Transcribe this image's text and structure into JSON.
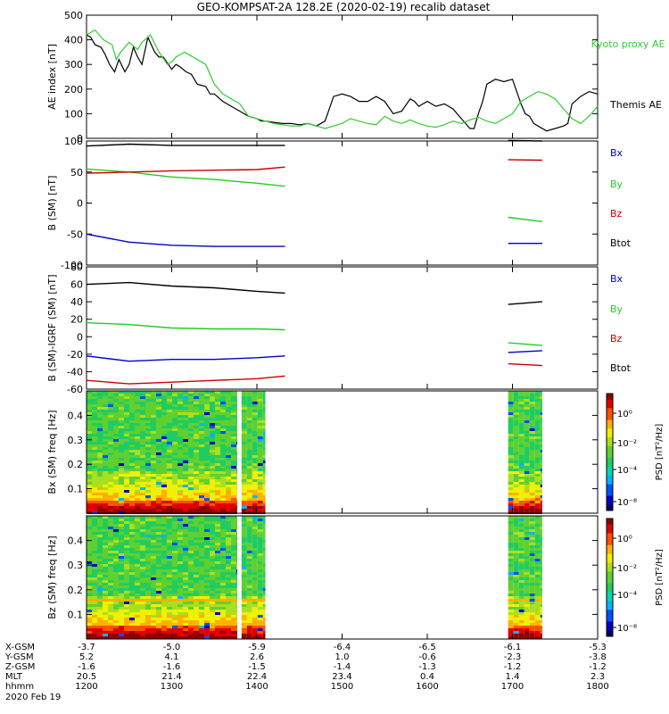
{
  "title": "GEO-KOMPSAT-2A 128.2E (2020-02-19) recalib dataset",
  "colors": {
    "black": "#000000",
    "blue": "#0000cc",
    "green": "#22cc22",
    "red": "#cc0000",
    "kyoto": "#33cc33"
  },
  "chart_data": [
    {
      "type": "line",
      "id": "ae",
      "ylabel": "AE index [nT]",
      "ylim": [
        0,
        500
      ],
      "yticks": [
        0,
        100,
        200,
        300,
        400,
        500
      ],
      "x_range_hours": [
        12,
        18
      ],
      "legend": [
        {
          "label": "Kyoto proxy AE",
          "color": "#33cc33"
        },
        {
          "label": "Themis AE",
          "color": "#000000"
        }
      ],
      "series": [
        {
          "name": "Themis AE",
          "color": "#000000",
          "x": [
            12.0,
            12.05,
            12.1,
            12.17,
            12.22,
            12.27,
            12.33,
            12.38,
            12.45,
            12.5,
            12.55,
            12.6,
            12.65,
            12.72,
            12.8,
            12.85,
            12.9,
            13.0,
            13.05,
            13.1,
            13.17,
            13.23,
            13.3,
            13.4,
            13.45,
            13.5,
            13.6,
            13.7,
            13.8,
            13.9,
            14.0,
            14.05,
            14.1,
            14.2,
            14.3,
            14.4,
            14.5,
            14.6,
            14.7,
            14.8,
            14.9,
            15.0,
            15.1,
            15.2,
            15.3,
            15.4,
            15.5,
            15.6,
            15.7,
            15.8,
            15.85,
            15.9,
            16.0,
            16.1,
            16.2,
            16.3,
            16.4,
            16.5,
            16.55,
            16.6,
            16.65,
            16.7,
            16.8,
            16.9,
            17.0,
            17.1,
            17.15,
            17.2,
            17.25,
            17.3,
            17.4,
            17.5,
            17.6,
            17.65,
            17.7,
            17.8,
            17.9,
            18.0
          ],
          "values": [
            420,
            410,
            380,
            370,
            340,
            300,
            270,
            320,
            270,
            300,
            370,
            330,
            300,
            410,
            350,
            330,
            330,
            280,
            300,
            290,
            270,
            260,
            220,
            210,
            180,
            180,
            150,
            130,
            110,
            90,
            80,
            70,
            70,
            65,
            60,
            60,
            55,
            60,
            50,
            70,
            170,
            180,
            170,
            150,
            150,
            170,
            150,
            100,
            110,
            160,
            150,
            130,
            150,
            130,
            140,
            120,
            80,
            40,
            40,
            100,
            150,
            220,
            240,
            230,
            240,
            140,
            100,
            90,
            60,
            50,
            30,
            40,
            50,
            60,
            140,
            170,
            190,
            180
          ]
        },
        {
          "name": "Kyoto proxy AE",
          "color": "#33cc33",
          "x": [
            12.0,
            12.1,
            12.2,
            12.3,
            12.35,
            12.4,
            12.5,
            12.6,
            12.65,
            12.75,
            12.85,
            12.95,
            13.0,
            13.05,
            13.15,
            13.2,
            13.25,
            13.3,
            13.4,
            13.5,
            13.6,
            13.7,
            13.8,
            13.9,
            14.0,
            14.1,
            14.2,
            14.3,
            14.4,
            14.5,
            14.6,
            14.7,
            14.8,
            14.9,
            15.0,
            15.1,
            15.2,
            15.3,
            15.4,
            15.5,
            15.6,
            15.7,
            15.8,
            15.9,
            16.0,
            16.1,
            16.2,
            16.3,
            16.4,
            16.5,
            16.6,
            16.7,
            16.8,
            16.9,
            17.0,
            17.1,
            17.2,
            17.3,
            17.4,
            17.5,
            17.6,
            17.7,
            17.8,
            17.9,
            18.0
          ],
          "values": [
            420,
            440,
            400,
            380,
            320,
            350,
            390,
            360,
            390,
            420,
            350,
            300,
            310,
            330,
            350,
            340,
            330,
            320,
            300,
            220,
            180,
            160,
            140,
            90,
            80,
            70,
            60,
            55,
            50,
            50,
            60,
            50,
            40,
            50,
            60,
            80,
            70,
            60,
            55,
            90,
            70,
            60,
            75,
            60,
            50,
            45,
            55,
            70,
            60,
            75,
            85,
            70,
            60,
            80,
            100,
            150,
            170,
            190,
            180,
            160,
            120,
            80,
            60,
            90,
            130
          ]
        }
      ]
    },
    {
      "type": "line",
      "id": "bsm",
      "ylabel": "B (SM) [nT]",
      "ylim": [
        -100,
        100
      ],
      "yticks": [
        -100,
        -50,
        0,
        50,
        100
      ],
      "legend": [
        {
          "label": "Bx",
          "color": "#0000cc"
        },
        {
          "label": "By",
          "color": "#22cc22"
        },
        {
          "label": "Bz",
          "color": "#cc0000"
        },
        {
          "label": "Btot",
          "color": "#000000"
        }
      ],
      "segments": [
        [
          12.0,
          14.33
        ],
        [
          16.95,
          17.35
        ]
      ],
      "series": [
        {
          "name": "Btot",
          "color": "#000000",
          "x": [
            12.0,
            12.5,
            13.0,
            13.5,
            14.0,
            14.33,
            16.95,
            17.35
          ],
          "values": [
            92,
            95,
            93,
            93,
            93,
            93,
            101,
            100
          ]
        },
        {
          "name": "By",
          "color": "#22cc22",
          "x": [
            12.0,
            12.5,
            13.0,
            13.5,
            14.0,
            14.33,
            16.95,
            17.35
          ],
          "values": [
            55,
            50,
            42,
            38,
            32,
            27,
            -23,
            -30
          ]
        },
        {
          "name": "Bz",
          "color": "#cc0000",
          "x": [
            12.0,
            12.5,
            13.0,
            13.5,
            14.0,
            14.33,
            16.95,
            17.35
          ],
          "values": [
            48,
            50,
            52,
            53,
            54,
            58,
            70,
            69
          ]
        },
        {
          "name": "Bx",
          "color": "#0000cc",
          "x": [
            12.0,
            12.5,
            13.0,
            13.5,
            14.0,
            14.33,
            16.95,
            17.35
          ],
          "values": [
            -50,
            -63,
            -68,
            -70,
            -70,
            -70,
            -65,
            -65
          ]
        }
      ]
    },
    {
      "type": "line",
      "id": "bigrf",
      "ylabel": "B (SM)-IGRF (SM) [nT]",
      "ylim": [
        -60,
        80
      ],
      "yticks": [
        -60,
        -40,
        -20,
        0,
        20,
        40,
        60,
        80
      ],
      "legend": [
        {
          "label": "Bx",
          "color": "#0000cc"
        },
        {
          "label": "By",
          "color": "#22cc22"
        },
        {
          "label": "Bz",
          "color": "#cc0000"
        },
        {
          "label": "Btot",
          "color": "#000000"
        }
      ],
      "segments": [
        [
          12.0,
          14.33
        ],
        [
          16.95,
          17.35
        ]
      ],
      "series": [
        {
          "name": "Btot",
          "color": "#000000",
          "x": [
            12.0,
            12.5,
            13.0,
            13.5,
            14.0,
            14.33,
            16.95,
            17.35
          ],
          "values": [
            60,
            62,
            58,
            56,
            52,
            50,
            37,
            40
          ]
        },
        {
          "name": "By",
          "color": "#22cc22",
          "x": [
            12.0,
            12.5,
            13.0,
            13.5,
            14.0,
            14.33,
            16.95,
            17.35
          ],
          "values": [
            16,
            14,
            10,
            9,
            9,
            8,
            -7,
            -10
          ]
        },
        {
          "name": "Bx",
          "color": "#0000cc",
          "x": [
            12.0,
            12.5,
            13.0,
            13.5,
            14.0,
            14.33,
            16.95,
            17.35
          ],
          "values": [
            -22,
            -28,
            -26,
            -26,
            -24,
            -22,
            -18,
            -16
          ]
        },
        {
          "name": "Bz",
          "color": "#cc0000",
          "x": [
            12.0,
            12.5,
            13.0,
            13.5,
            14.0,
            14.33,
            16.95,
            17.35
          ],
          "values": [
            -50,
            -54,
            -52,
            -50,
            -48,
            -45,
            -31,
            -33
          ]
        }
      ]
    },
    {
      "type": "heatmap",
      "id": "bx-psd",
      "ylabel": "Bx (SM) freq [Hz]",
      "ylim": [
        0,
        0.5
      ],
      "yticks": [
        0.1,
        0.2,
        0.3,
        0.4
      ],
      "colorbar_label": "PSD [nT²/Hz]",
      "colorbar_ticks": [
        "10⁰",
        "10⁻²",
        "10⁻⁴",
        "10⁻⁸"
      ],
      "data_segments": [
        [
          12.0,
          13.77
        ],
        [
          13.82,
          14.1
        ],
        [
          16.95,
          17.35
        ]
      ],
      "dominant_value": "10⁻³",
      "low_freq_value": "10⁰"
    },
    {
      "type": "heatmap",
      "id": "bz-psd",
      "ylabel": "Bz (SM) freq [Hz]",
      "ylim": [
        0,
        0.5
      ],
      "yticks": [
        0.1,
        0.2,
        0.3,
        0.4
      ],
      "colorbar_label": "PSD [nT²/Hz]",
      "colorbar_ticks": [
        "10⁰",
        "10⁻²",
        "10⁻⁴",
        "10⁻⁸"
      ],
      "data_segments": [
        [
          12.0,
          13.77
        ],
        [
          13.82,
          14.1
        ],
        [
          16.95,
          17.35
        ]
      ],
      "dominant_value": "10⁻³",
      "low_freq_value": "10⁰"
    }
  ],
  "x_axis": {
    "tick_hours": [
      12,
      13,
      14,
      15,
      16,
      17,
      18
    ],
    "rows": [
      {
        "label": "X-GSM",
        "values": [
          "-3.7",
          "-5.0",
          "-5.9",
          "-6.4",
          "-6.5",
          "-6.1",
          "-5.3"
        ]
      },
      {
        "label": "Y-GSM",
        "values": [
          "5.2",
          "4.1",
          "2.6",
          "1.0",
          "-0.6",
          "-2.3",
          "-3.8"
        ]
      },
      {
        "label": "Z-GSM",
        "values": [
          "-1.6",
          "-1.6",
          "-1.5",
          "-1.4",
          "-1.3",
          "-1.2",
          "-1.2"
        ]
      },
      {
        "label": "MLT",
        "values": [
          "20.5",
          "21.4",
          "22.4",
          "23.4",
          "0.4",
          "1.4",
          "2.3"
        ]
      },
      {
        "label": "hhmm",
        "values": [
          "1200",
          "1300",
          "1400",
          "1500",
          "1600",
          "1700",
          "1800"
        ]
      }
    ],
    "date": "2020 Feb 19"
  }
}
